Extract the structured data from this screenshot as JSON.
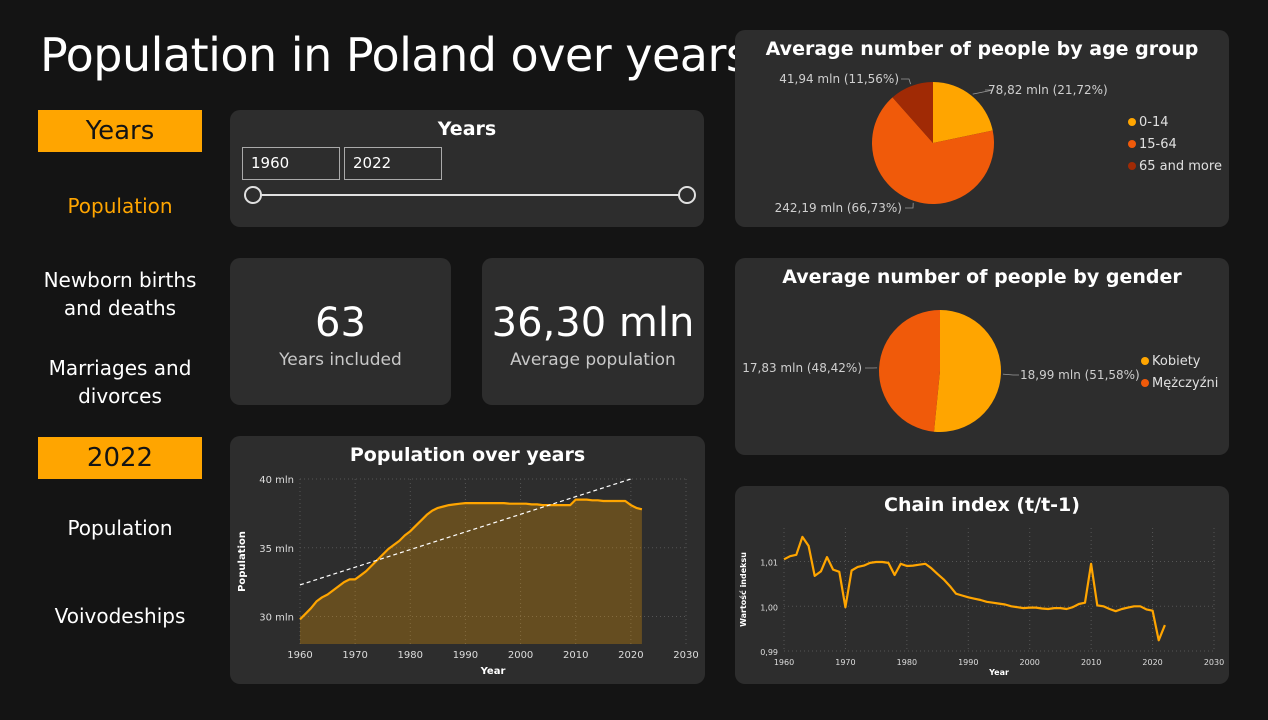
{
  "page": {
    "title": "Population in Poland over years"
  },
  "nav": {
    "header_years": "Years",
    "item_population": "Population",
    "item_births_line1": "Newborn births",
    "item_births_line2": "and deaths",
    "item_marriages_line1": "Marriages and",
    "item_marriages_line2": "divorces",
    "header_2022": "2022",
    "item_population_2022": "Population",
    "item_voivodeships": "Voivodeships"
  },
  "slicer": {
    "title": "Years",
    "start": "1960",
    "end": "2022"
  },
  "kpi": {
    "years_value": "63",
    "years_label": "Years included",
    "avg_value": "36,30 mln",
    "avg_label": "Average population"
  },
  "colors": {
    "accent": "#ffa500",
    "orange2": "#f05a0a",
    "darkred": "#a02a05",
    "card": "#2d2d2d",
    "bg": "#141414"
  },
  "chart_data": [
    {
      "id": "age",
      "type": "pie",
      "title": "Average number of people by age group",
      "slices": [
        {
          "name": "0-14",
          "value": 78.82,
          "label": "78,82 mln (21,72%)",
          "color": "#ffa500"
        },
        {
          "name": "15-64",
          "value": 242.19,
          "label": "242,19 mln (66,73%)",
          "color": "#f05a0a"
        },
        {
          "name": "65 and more",
          "value": 41.94,
          "label": "41,94 mln (11,56%)",
          "color": "#a02a05"
        }
      ],
      "legend": "right"
    },
    {
      "id": "gender",
      "type": "pie",
      "title": "Average number of people by gender",
      "slices": [
        {
          "name": "Kobiety",
          "value": 18.99,
          "label": "18,99 mln (51,58%)",
          "color": "#ffa500"
        },
        {
          "name": "Mężczyźni",
          "value": 17.83,
          "label": "17,83 mln (48,42%)",
          "color": "#f05a0a"
        }
      ],
      "legend": "right"
    },
    {
      "id": "population",
      "type": "area",
      "title": "Population over years",
      "xlabel": "Year",
      "ylabel": "Population",
      "xlim": [
        1960,
        2030
      ],
      "ylim": [
        28,
        40
      ],
      "x_ticks": [
        "1960",
        "1970",
        "1980",
        "1990",
        "2000",
        "2010",
        "2020",
        "2030"
      ],
      "y_ticks": [
        {
          "v": 30,
          "t": "30 mln"
        },
        {
          "v": 35,
          "t": "35 mln"
        },
        {
          "v": 40,
          "t": "40 mln"
        }
      ],
      "grid": true,
      "trendline": {
        "x": [
          1960,
          2020
        ],
        "y": [
          32.3,
          40.0
        ]
      },
      "x": [
        1960,
        1961,
        1962,
        1963,
        1964,
        1965,
        1966,
        1967,
        1968,
        1969,
        1970,
        1971,
        1972,
        1973,
        1974,
        1975,
        1976,
        1977,
        1978,
        1979,
        1980,
        1981,
        1982,
        1983,
        1984,
        1985,
        1986,
        1987,
        1988,
        1989,
        1990,
        1991,
        1992,
        1993,
        1994,
        1995,
        1996,
        1997,
        1998,
        1999,
        2000,
        2001,
        2002,
        2003,
        2004,
        2005,
        2006,
        2007,
        2008,
        2009,
        2010,
        2011,
        2012,
        2013,
        2014,
        2015,
        2016,
        2017,
        2018,
        2019,
        2020,
        2021,
        2022
      ],
      "y": [
        29.8,
        30.2,
        30.6,
        31.1,
        31.4,
        31.6,
        31.9,
        32.2,
        32.5,
        32.7,
        32.7,
        33.0,
        33.3,
        33.7,
        34.1,
        34.5,
        34.9,
        35.2,
        35.5,
        35.9,
        36.2,
        36.6,
        37.0,
        37.4,
        37.7,
        37.9,
        38.0,
        38.1,
        38.15,
        38.2,
        38.25,
        38.25,
        38.25,
        38.25,
        38.25,
        38.25,
        38.25,
        38.25,
        38.2,
        38.2,
        38.2,
        38.2,
        38.15,
        38.15,
        38.1,
        38.1,
        38.1,
        38.1,
        38.1,
        38.1,
        38.5,
        38.5,
        38.5,
        38.45,
        38.45,
        38.4,
        38.4,
        38.4,
        38.4,
        38.4,
        38.1,
        37.9,
        37.8
      ]
    },
    {
      "id": "chain",
      "type": "line",
      "title": "Chain index (t/t-1)",
      "xlabel": "Year",
      "ylabel": "Wartość indeksu",
      "xlim": [
        1960,
        2030
      ],
      "ylim": [
        0.99,
        1.0175
      ],
      "x_ticks": [
        "1960",
        "1970",
        "1980",
        "1990",
        "2000",
        "2010",
        "2020",
        "2030"
      ],
      "y_ticks": [
        {
          "v": 0.99,
          "t": "0,99"
        },
        {
          "v": 1.0,
          "t": "1,00"
        },
        {
          "v": 1.01,
          "t": "1,01"
        }
      ],
      "grid": true,
      "x": [
        1960,
        1961,
        1962,
        1963,
        1964,
        1965,
        1966,
        1967,
        1968,
        1969,
        1970,
        1971,
        1972,
        1973,
        1974,
        1975,
        1976,
        1977,
        1978,
        1979,
        1980,
        1981,
        1982,
        1983,
        1984,
        1985,
        1986,
        1987,
        1988,
        1989,
        1990,
        1991,
        1992,
        1993,
        1994,
        1995,
        1996,
        1997,
        1998,
        1999,
        2000,
        2001,
        2002,
        2003,
        2004,
        2005,
        2006,
        2007,
        2008,
        2009,
        2010,
        2011,
        2012,
        2013,
        2014,
        2015,
        2016,
        2017,
        2018,
        2019,
        2020,
        2021,
        2022
      ],
      "y": [
        1.0105,
        1.0112,
        1.0115,
        1.0155,
        1.0135,
        1.0068,
        1.0078,
        1.011,
        1.0082,
        1.0077,
        0.9998,
        1.008,
        1.0088,
        1.0091,
        1.0097,
        1.0099,
        1.0099,
        1.0097,
        1.007,
        1.0095,
        1.009,
        1.0091,
        1.0093,
        1.0095,
        1.0085,
        1.0072,
        1.006,
        1.0045,
        1.0028,
        1.0024,
        1.002,
        1.0017,
        1.0014,
        1.001,
        1.0008,
        1.0006,
        1.0004,
        1.0,
        0.9998,
        0.9996,
        0.9997,
        0.9997,
        0.9995,
        0.9994,
        0.9996,
        0.9996,
        0.9994,
        0.9998,
        1.0005,
        1.0008,
        1.0095,
        1.0002,
        1.0,
        0.9994,
        0.9989,
        0.9994,
        0.9997,
        1.0,
        1.0,
        0.9993,
        0.999,
        0.9924,
        0.9958
      ]
    }
  ]
}
